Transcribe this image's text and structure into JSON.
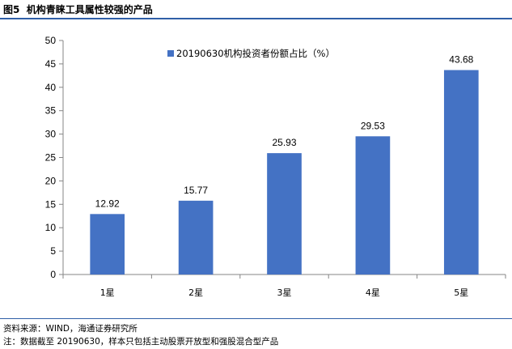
{
  "header": {
    "figure_label": "图5",
    "title": "机构青睐工具属性较强的产品"
  },
  "chart_data": {
    "type": "bar",
    "categories": [
      "1星",
      "2星",
      "3星",
      "4星",
      "5星"
    ],
    "series": [
      {
        "name": "20190630机构投资者份额占比（%）",
        "values": [
          12.92,
          15.77,
          25.93,
          29.53,
          43.68
        ]
      }
    ],
    "data_labels": [
      "12.92",
      "15.77",
      "25.93",
      "29.53",
      "43.68"
    ],
    "ylim": [
      0,
      50
    ],
    "yticks": [
      0,
      5,
      10,
      15,
      20,
      25,
      30,
      35,
      40,
      45,
      50
    ],
    "grid": false,
    "legend_position": "top-center",
    "bar_color": "#4472c4"
  },
  "footer": {
    "source": "资料来源：WIND，海通证券研究所",
    "note": "注：数据截至 20190630，样本只包括主动股票开放型和强股混合型产品"
  }
}
